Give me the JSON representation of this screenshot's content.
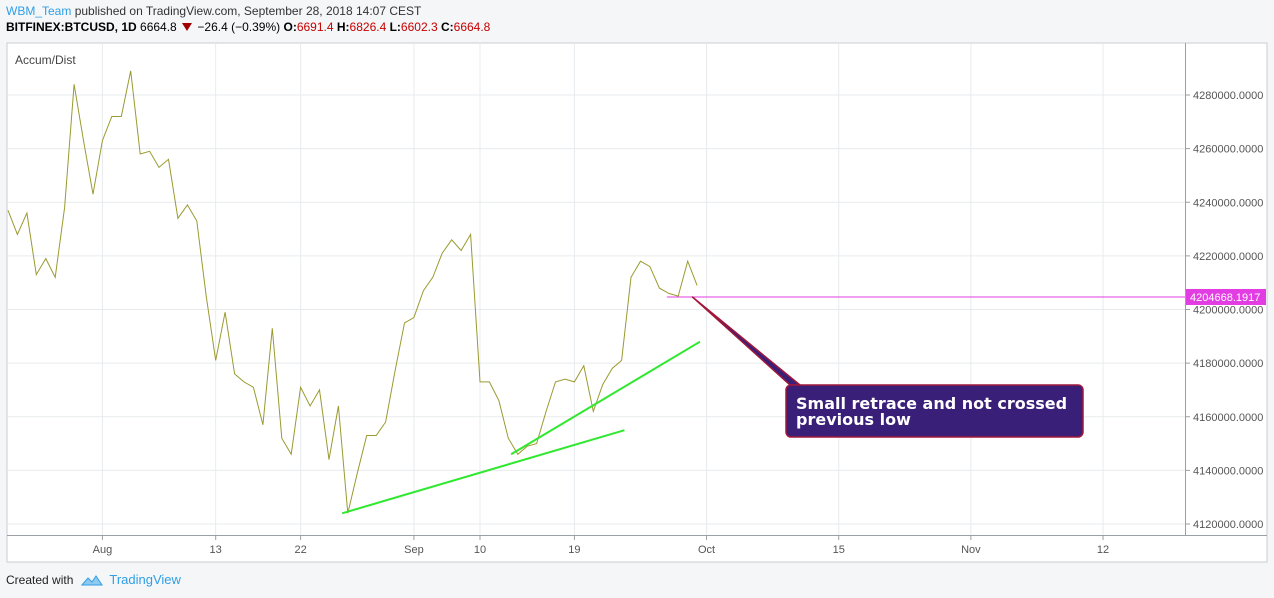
{
  "header": {
    "user": "WBM_Team",
    "published": "published on TradingView.com, September 28, 2018 14:07 CEST",
    "symbol": "BITFINEX:BTCUSD, 1D",
    "last": "6664.8",
    "change": "−26.4 (−0.39%)",
    "o_label": "O:",
    "o": "6691.4",
    "h_label": "H:",
    "h": "6826.4",
    "l_label": "L:",
    "l": "6602.3",
    "c_label": "C:",
    "c": "6664.8"
  },
  "footer": {
    "created_with": "Created with",
    "brand": "TradingView"
  },
  "colors": {
    "line": "#9a9a30",
    "trend": "#2fe82f",
    "level": "#e23de2",
    "callout_bg": "#3a1f78",
    "callout_border": "#a0183a"
  },
  "chart_data": {
    "type": "line",
    "indicator": "Accum/Dist",
    "x_tick_labels": [
      "Aug",
      "13",
      "22",
      "Sep",
      "10",
      "19",
      "Oct",
      "15",
      "Nov",
      "12"
    ],
    "y_tick_labels": [
      "4280000.0000",
      "4260000.0000",
      "4240000.0000",
      "4220000.0000",
      "4200000.0000",
      "4180000.0000",
      "4160000.0000",
      "4140000.0000",
      "4120000.0000"
    ],
    "ylim": [
      4118000,
      4298000
    ],
    "grid": true,
    "x_start_label": "Jul 23",
    "series": [
      {
        "values": [
          4237000,
          4228000,
          4236000,
          4213000,
          4219000,
          4212000,
          4238000,
          4284000,
          4263000,
          4243000,
          4263000,
          4272000,
          4272000,
          4289000,
          4258000,
          4259000,
          4253000,
          4256000,
          4234000,
          4239000,
          4233000,
          4205000,
          4181000,
          4199000,
          4176000,
          4173000,
          4171000,
          4157000,
          4193000,
          4152000,
          4146000,
          4171000,
          4164000,
          4170000,
          4144000,
          4164000,
          4124000,
          4139000,
          4153000,
          4153000,
          4158000,
          4177000,
          4195000,
          4197000,
          4207000,
          4212000,
          4221000,
          4226000,
          4222000,
          4228000,
          4173000,
          4173000,
          4166000,
          4152000,
          4146000,
          4149000,
          4150000,
          4162000,
          4173000,
          4174000,
          4173000,
          4179000,
          4162000,
          4172000,
          4178000,
          4181000,
          4212000,
          4218000,
          4216000,
          4208000,
          4206000,
          4205000,
          4218000,
          4209000
        ]
      }
    ],
    "last_value_label": "4204668.1917",
    "level_value": 4204668.1917,
    "annotation": "Small retrace and not crossed previous low"
  }
}
